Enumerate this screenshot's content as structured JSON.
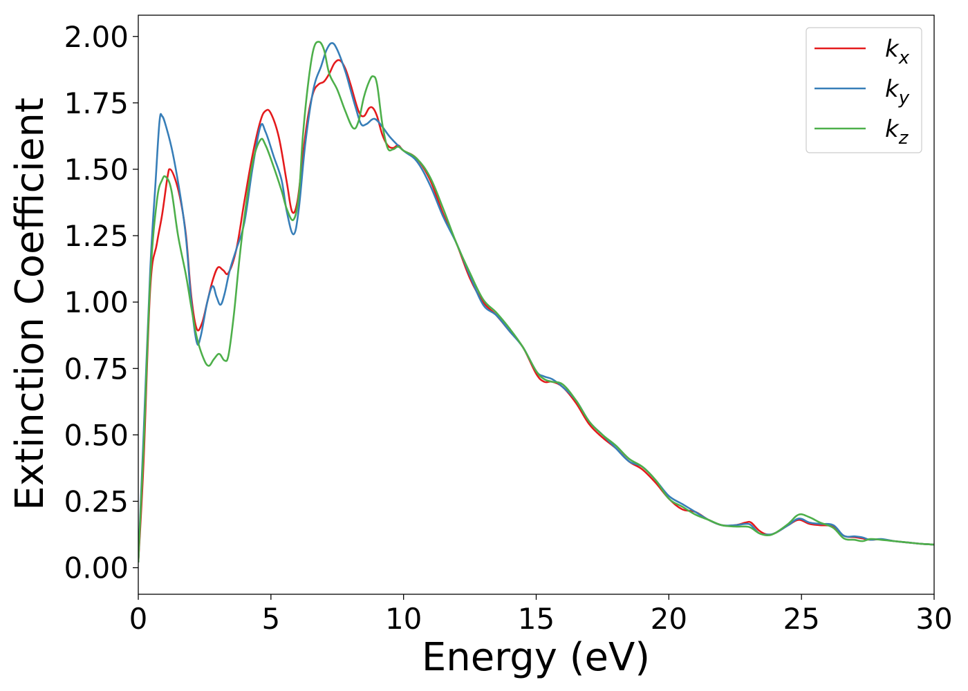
{
  "chart_data": {
    "type": "line",
    "title": "",
    "xlabel": "Energy (eV)",
    "ylabel": "Extinction Coefficient",
    "xlim": [
      0,
      30
    ],
    "ylim": [
      -0.1,
      2.08
    ],
    "xticks": [
      0,
      5,
      10,
      15,
      20,
      25,
      30
    ],
    "xtick_labels": [
      "0",
      "5",
      "10",
      "15",
      "20",
      "25",
      "30"
    ],
    "yticks": [
      0.0,
      0.25,
      0.5,
      0.75,
      1.0,
      1.25,
      1.5,
      1.75,
      2.0
    ],
    "ytick_labels": [
      "0.00",
      "0.25",
      "0.50",
      "0.75",
      "1.00",
      "1.25",
      "1.50",
      "1.75",
      "2.00"
    ],
    "grid": false,
    "legend_position": "top-right",
    "series": [
      {
        "name": "k_x",
        "label_base": "k",
        "label_sub": "x",
        "color": "#e41a1c",
        "points": [
          [
            0,
            0.02
          ],
          [
            0.2,
            0.4
          ],
          [
            0.45,
            1.05
          ],
          [
            0.7,
            1.22
          ],
          [
            0.9,
            1.33
          ],
          [
            1.1,
            1.47
          ],
          [
            1.2,
            1.5
          ],
          [
            1.4,
            1.46
          ],
          [
            1.6,
            1.38
          ],
          [
            1.8,
            1.25
          ],
          [
            2.0,
            1.02
          ],
          [
            2.2,
            0.9
          ],
          [
            2.4,
            0.92
          ],
          [
            2.6,
            1.0
          ],
          [
            2.8,
            1.08
          ],
          [
            3.0,
            1.13
          ],
          [
            3.2,
            1.12
          ],
          [
            3.4,
            1.11
          ],
          [
            3.7,
            1.2
          ],
          [
            4.0,
            1.38
          ],
          [
            4.3,
            1.55
          ],
          [
            4.6,
            1.68
          ],
          [
            4.8,
            1.72
          ],
          [
            5.0,
            1.71
          ],
          [
            5.3,
            1.62
          ],
          [
            5.6,
            1.45
          ],
          [
            5.8,
            1.34
          ],
          [
            6.0,
            1.38
          ],
          [
            6.2,
            1.55
          ],
          [
            6.4,
            1.7
          ],
          [
            6.6,
            1.79
          ],
          [
            6.8,
            1.82
          ],
          [
            7.0,
            1.83
          ],
          [
            7.2,
            1.86
          ],
          [
            7.4,
            1.9
          ],
          [
            7.6,
            1.91
          ],
          [
            7.8,
            1.88
          ],
          [
            8.0,
            1.82
          ],
          [
            8.3,
            1.72
          ],
          [
            8.5,
            1.7
          ],
          [
            8.7,
            1.73
          ],
          [
            8.85,
            1.73
          ],
          [
            9.0,
            1.7
          ],
          [
            9.2,
            1.63
          ],
          [
            9.4,
            1.59
          ],
          [
            9.6,
            1.58
          ],
          [
            9.8,
            1.59
          ],
          [
            10.0,
            1.57
          ],
          [
            10.5,
            1.54
          ],
          [
            11.0,
            1.46
          ],
          [
            11.5,
            1.33
          ],
          [
            12.0,
            1.22
          ],
          [
            12.5,
            1.09
          ],
          [
            13.0,
            1.0
          ],
          [
            13.5,
            0.95
          ],
          [
            14.0,
            0.89
          ],
          [
            14.5,
            0.83
          ],
          [
            15.0,
            0.73
          ],
          [
            15.3,
            0.7
          ],
          [
            15.6,
            0.7
          ],
          [
            16.0,
            0.68
          ],
          [
            16.5,
            0.62
          ],
          [
            17.0,
            0.54
          ],
          [
            17.5,
            0.49
          ],
          [
            18.0,
            0.45
          ],
          [
            18.5,
            0.4
          ],
          [
            19.0,
            0.37
          ],
          [
            19.5,
            0.32
          ],
          [
            20.0,
            0.26
          ],
          [
            20.5,
            0.22
          ],
          [
            21.0,
            0.21
          ],
          [
            21.5,
            0.18
          ],
          [
            22.0,
            0.16
          ],
          [
            22.5,
            0.16
          ],
          [
            22.9,
            0.17
          ],
          [
            23.1,
            0.17
          ],
          [
            23.4,
            0.14
          ],
          [
            23.7,
            0.125
          ],
          [
            24.0,
            0.13
          ],
          [
            24.5,
            0.16
          ],
          [
            24.9,
            0.18
          ],
          [
            25.3,
            0.165
          ],
          [
            25.7,
            0.16
          ],
          [
            26.2,
            0.155
          ],
          [
            26.6,
            0.12
          ],
          [
            27.0,
            0.115
          ],
          [
            27.3,
            0.11
          ],
          [
            27.6,
            0.105
          ],
          [
            28.0,
            0.107
          ],
          [
            28.5,
            0.1
          ],
          [
            29.0,
            0.095
          ],
          [
            29.5,
            0.09
          ],
          [
            30.0,
            0.087
          ]
        ]
      },
      {
        "name": "k_y",
        "label_base": "k",
        "label_sub": "y",
        "color": "#377eb8",
        "points": [
          [
            0,
            0.02
          ],
          [
            0.2,
            0.5
          ],
          [
            0.45,
            1.12
          ],
          [
            0.65,
            1.45
          ],
          [
            0.8,
            1.68
          ],
          [
            0.9,
            1.7
          ],
          [
            1.05,
            1.66
          ],
          [
            1.3,
            1.56
          ],
          [
            1.6,
            1.39
          ],
          [
            1.8,
            1.24
          ],
          [
            2.0,
            1.0
          ],
          [
            2.2,
            0.85
          ],
          [
            2.35,
            0.87
          ],
          [
            2.6,
            1.0
          ],
          [
            2.8,
            1.06
          ],
          [
            2.95,
            1.02
          ],
          [
            3.1,
            0.99
          ],
          [
            3.25,
            1.03
          ],
          [
            3.45,
            1.12
          ],
          [
            3.7,
            1.2
          ],
          [
            4.0,
            1.3
          ],
          [
            4.3,
            1.5
          ],
          [
            4.6,
            1.66
          ],
          [
            4.8,
            1.64
          ],
          [
            5.1,
            1.55
          ],
          [
            5.4,
            1.46
          ],
          [
            5.6,
            1.34
          ],
          [
            5.85,
            1.255
          ],
          [
            6.05,
            1.35
          ],
          [
            6.3,
            1.6
          ],
          [
            6.6,
            1.8
          ],
          [
            6.9,
            1.89
          ],
          [
            7.1,
            1.95
          ],
          [
            7.3,
            1.975
          ],
          [
            7.5,
            1.95
          ],
          [
            7.8,
            1.87
          ],
          [
            8.0,
            1.8
          ],
          [
            8.2,
            1.73
          ],
          [
            8.4,
            1.67
          ],
          [
            8.6,
            1.67
          ],
          [
            8.9,
            1.69
          ],
          [
            9.2,
            1.66
          ],
          [
            9.5,
            1.62
          ],
          [
            10.0,
            1.57
          ],
          [
            10.5,
            1.53
          ],
          [
            11.0,
            1.44
          ],
          [
            11.5,
            1.32
          ],
          [
            12.0,
            1.22
          ],
          [
            12.5,
            1.1
          ],
          [
            13.0,
            0.99
          ],
          [
            13.5,
            0.95
          ],
          [
            14.0,
            0.89
          ],
          [
            14.5,
            0.83
          ],
          [
            15.0,
            0.74
          ],
          [
            15.3,
            0.72
          ],
          [
            15.6,
            0.71
          ],
          [
            16.0,
            0.68
          ],
          [
            16.5,
            0.63
          ],
          [
            17.0,
            0.55
          ],
          [
            17.5,
            0.5
          ],
          [
            18.0,
            0.45
          ],
          [
            18.5,
            0.4
          ],
          [
            19.0,
            0.38
          ],
          [
            19.5,
            0.33
          ],
          [
            20.0,
            0.27
          ],
          [
            20.5,
            0.24
          ],
          [
            21.0,
            0.21
          ],
          [
            21.5,
            0.18
          ],
          [
            22.0,
            0.16
          ],
          [
            22.5,
            0.16
          ],
          [
            22.9,
            0.165
          ],
          [
            23.1,
            0.16
          ],
          [
            23.4,
            0.13
          ],
          [
            23.7,
            0.125
          ],
          [
            24.0,
            0.13
          ],
          [
            24.5,
            0.16
          ],
          [
            24.9,
            0.185
          ],
          [
            25.3,
            0.17
          ],
          [
            25.7,
            0.165
          ],
          [
            26.2,
            0.16
          ],
          [
            26.6,
            0.12
          ],
          [
            27.0,
            0.118
          ],
          [
            27.3,
            0.114
          ],
          [
            27.6,
            0.105
          ],
          [
            28.0,
            0.108
          ],
          [
            28.5,
            0.1
          ],
          [
            29.0,
            0.095
          ],
          [
            29.5,
            0.09
          ],
          [
            30.0,
            0.087
          ]
        ]
      },
      {
        "name": "k_z",
        "label_base": "k",
        "label_sub": "z",
        "color": "#4daf4a",
        "points": [
          [
            0,
            0.02
          ],
          [
            0.2,
            0.45
          ],
          [
            0.45,
            1.08
          ],
          [
            0.7,
            1.38
          ],
          [
            0.9,
            1.46
          ],
          [
            1.05,
            1.47
          ],
          [
            1.25,
            1.42
          ],
          [
            1.5,
            1.25
          ],
          [
            1.8,
            1.1
          ],
          [
            2.0,
            0.98
          ],
          [
            2.2,
            0.87
          ],
          [
            2.45,
            0.79
          ],
          [
            2.65,
            0.76
          ],
          [
            2.85,
            0.785
          ],
          [
            3.05,
            0.805
          ],
          [
            3.25,
            0.78
          ],
          [
            3.4,
            0.8
          ],
          [
            3.6,
            0.95
          ],
          [
            3.8,
            1.15
          ],
          [
            4.0,
            1.32
          ],
          [
            4.3,
            1.52
          ],
          [
            4.6,
            1.61
          ],
          [
            4.8,
            1.59
          ],
          [
            5.1,
            1.51
          ],
          [
            5.4,
            1.42
          ],
          [
            5.6,
            1.35
          ],
          [
            5.85,
            1.31
          ],
          [
            6.05,
            1.4
          ],
          [
            6.2,
            1.62
          ],
          [
            6.4,
            1.82
          ],
          [
            6.6,
            1.95
          ],
          [
            6.8,
            1.98
          ],
          [
            7.0,
            1.95
          ],
          [
            7.2,
            1.86
          ],
          [
            7.5,
            1.8
          ],
          [
            7.8,
            1.72
          ],
          [
            8.1,
            1.655
          ],
          [
            8.3,
            1.68
          ],
          [
            8.5,
            1.77
          ],
          [
            8.7,
            1.83
          ],
          [
            8.85,
            1.85
          ],
          [
            9.0,
            1.82
          ],
          [
            9.2,
            1.67
          ],
          [
            9.4,
            1.58
          ],
          [
            9.6,
            1.575
          ],
          [
            9.8,
            1.585
          ],
          [
            10.0,
            1.57
          ],
          [
            10.5,
            1.54
          ],
          [
            11.0,
            1.47
          ],
          [
            11.5,
            1.35
          ],
          [
            12.0,
            1.22
          ],
          [
            12.5,
            1.11
          ],
          [
            13.0,
            1.01
          ],
          [
            13.5,
            0.96
          ],
          [
            14.0,
            0.9
          ],
          [
            14.5,
            0.83
          ],
          [
            15.0,
            0.74
          ],
          [
            15.3,
            0.71
          ],
          [
            15.6,
            0.7
          ],
          [
            16.0,
            0.69
          ],
          [
            16.5,
            0.63
          ],
          [
            17.0,
            0.55
          ],
          [
            17.5,
            0.5
          ],
          [
            18.0,
            0.46
          ],
          [
            18.5,
            0.41
          ],
          [
            19.0,
            0.38
          ],
          [
            19.5,
            0.33
          ],
          [
            20.0,
            0.26
          ],
          [
            20.5,
            0.23
          ],
          [
            21.0,
            0.2
          ],
          [
            21.5,
            0.18
          ],
          [
            22.0,
            0.16
          ],
          [
            22.5,
            0.155
          ],
          [
            22.9,
            0.155
          ],
          [
            23.1,
            0.15
          ],
          [
            23.4,
            0.13
          ],
          [
            23.7,
            0.122
          ],
          [
            24.0,
            0.13
          ],
          [
            24.5,
            0.165
          ],
          [
            24.9,
            0.2
          ],
          [
            25.3,
            0.19
          ],
          [
            25.7,
            0.17
          ],
          [
            26.2,
            0.15
          ],
          [
            26.6,
            0.11
          ],
          [
            27.0,
            0.105
          ],
          [
            27.3,
            0.1
          ],
          [
            27.6,
            0.108
          ],
          [
            28.0,
            0.105
          ],
          [
            28.5,
            0.1
          ],
          [
            29.0,
            0.095
          ],
          [
            29.5,
            0.09
          ],
          [
            30.0,
            0.087
          ]
        ]
      }
    ]
  }
}
